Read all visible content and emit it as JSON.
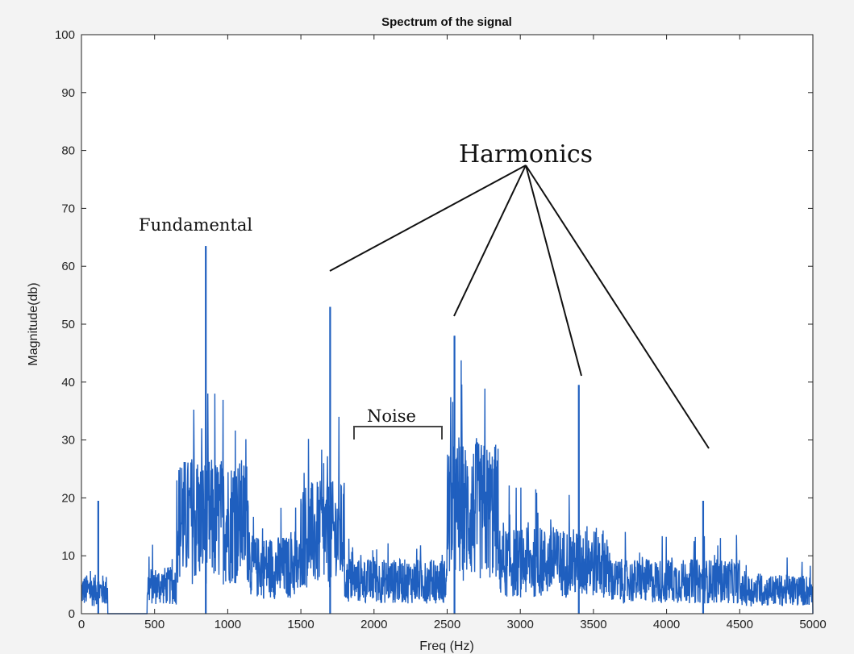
{
  "chart_data": {
    "type": "line",
    "title": "Spectrum of the signal",
    "xlabel": "Freq (Hz)",
    "ylabel": "Magnitude(db)",
    "xlim": [
      0,
      5000
    ],
    "ylim": [
      0,
      100
    ],
    "xticks": [
      0,
      500,
      1000,
      1500,
      2000,
      2500,
      3000,
      3500,
      4000,
      4500,
      5000
    ],
    "yticks": [
      0,
      10,
      20,
      30,
      40,
      50,
      60,
      70,
      80,
      90,
      100
    ],
    "grid": false,
    "series_color": "#1f5fbf",
    "peaks": [
      {
        "x": 115,
        "y": 19.5
      },
      {
        "x": 850,
        "y": 63.5
      },
      {
        "x": 1700,
        "y": 53
      },
      {
        "x": 2550,
        "y": 48
      },
      {
        "x": 3400,
        "y": 39.5
      },
      {
        "x": 4250,
        "y": 19.5
      }
    ],
    "noise_floor": [
      {
        "x_start": 0,
        "x_end": 180,
        "level": 5
      },
      {
        "x_start": 450,
        "x_end": 650,
        "level": 6
      },
      {
        "x_start": 650,
        "x_end": 1150,
        "level": 20
      },
      {
        "x_start": 1150,
        "x_end": 1500,
        "level": 10
      },
      {
        "x_start": 1500,
        "x_end": 1800,
        "level": 17
      },
      {
        "x_start": 1800,
        "x_end": 2500,
        "level": 7
      },
      {
        "x_start": 2500,
        "x_end": 2850,
        "level": 22
      },
      {
        "x_start": 2850,
        "x_end": 3600,
        "level": 11
      },
      {
        "x_start": 3600,
        "x_end": 4500,
        "level": 7
      },
      {
        "x_start": 4500,
        "x_end": 5000,
        "level": 5
      }
    ],
    "annotations": {
      "fundamental": {
        "text": "Fundamental",
        "x": 850,
        "y": 63.5
      },
      "harmonics": {
        "text": "Harmonics",
        "x": 3000,
        "y": 80
      },
      "noise": {
        "text": "Noise",
        "x_start": 1830,
        "x_end": 2450,
        "y": 31
      }
    }
  }
}
